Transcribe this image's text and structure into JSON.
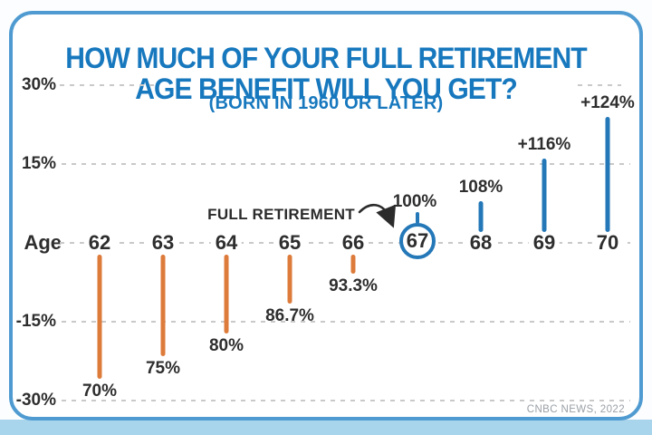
{
  "chart_data": {
    "type": "bar",
    "title_lines": [
      "HOW MUCH OF YOUR FULL RETIREMENT",
      "AGE BENEFIT WILL YOU GET?"
    ],
    "subtitle": "(BORN IN 1960 OR LATER)",
    "xlabel": "Age",
    "annotation": "FULL RETIREMENT",
    "source": "CNBC NEWS, 2022",
    "y_axis": {
      "ticks": [
        {
          "label": "30%",
          "value": 30
        },
        {
          "label": "15%",
          "value": 15
        },
        {
          "label": "-15%",
          "value": -15
        },
        {
          "label": "-30%",
          "value": -30
        }
      ],
      "baseline_value": 0,
      "ylim": [
        -33,
        33
      ],
      "grid": "dashed"
    },
    "points": [
      {
        "age": 62,
        "value_pct": 70,
        "label": "70%",
        "delta_pct": -30
      },
      {
        "age": 63,
        "value_pct": 75,
        "label": "75%",
        "delta_pct": -25
      },
      {
        "age": 64,
        "value_pct": 80,
        "label": "80%",
        "delta_pct": -20
      },
      {
        "age": 65,
        "value_pct": 86.7,
        "label": "86.7%",
        "delta_pct": -13.3
      },
      {
        "age": 66,
        "value_pct": 93.3,
        "label": "93.3%",
        "delta_pct": -6.7
      },
      {
        "age": 67,
        "value_pct": 100,
        "label": "100%",
        "delta_pct": 0,
        "circled": true,
        "annotated": true
      },
      {
        "age": 68,
        "value_pct": 108,
        "label": "108%",
        "delta_pct": 8
      },
      {
        "age": 69,
        "value_pct": 116,
        "label": "+116%",
        "delta_pct": 16
      },
      {
        "age": 70,
        "value_pct": 124,
        "label": "+124%",
        "delta_pct": 24
      }
    ],
    "colors": {
      "title_blue": "#1778BE",
      "bar_below_full": "#DD7B3B",
      "bar_above_full": "#2478B8",
      "circle_blue": "#2478B8",
      "grid_gray": "#C9C9C9",
      "text_dark": "#2E2E2E",
      "source_gray": "#9AA0A6",
      "card_border_blue": "#4F9BD1",
      "bottom_strip_blue": "#A8D4EC"
    }
  }
}
